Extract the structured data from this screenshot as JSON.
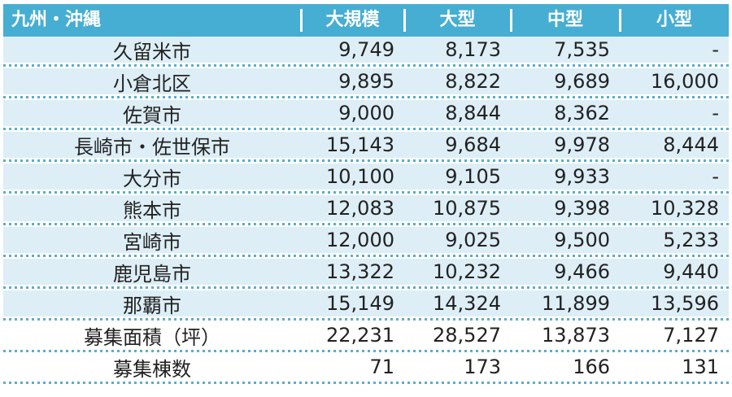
{
  "colors": {
    "header_bg": "#46aed2",
    "row_bg": "#ddeef6",
    "summary_row_bg": "#ffffff",
    "separator_dots": "#5badcd",
    "header_text": "#ffffff",
    "body_text": "#222222"
  },
  "table": {
    "header": {
      "region_label": "九州・沖縄",
      "columns": [
        "大規模",
        "大型",
        "中型",
        "小型"
      ]
    },
    "rows": [
      {
        "label": "久留米市",
        "values": [
          "9,749",
          "8,173",
          "7,535",
          "-"
        ]
      },
      {
        "label": "小倉北区",
        "values": [
          "9,895",
          "8,822",
          "9,689",
          "16,000"
        ]
      },
      {
        "label": "佐賀市",
        "values": [
          "9,000",
          "8,844",
          "8,362",
          "-"
        ]
      },
      {
        "label": "長崎市・佐世保市",
        "values": [
          "15,143",
          "9,684",
          "9,978",
          "8,444"
        ]
      },
      {
        "label": "大分市",
        "values": [
          "10,100",
          "9,105",
          "9,933",
          "-"
        ]
      },
      {
        "label": "熊本市",
        "values": [
          "12,083",
          "10,875",
          "9,398",
          "10,328"
        ]
      },
      {
        "label": "宮崎市",
        "values": [
          "12,000",
          "9,025",
          "9,500",
          "5,233"
        ]
      },
      {
        "label": "鹿児島市",
        "values": [
          "13,322",
          "10,232",
          "9,466",
          "9,440"
        ]
      },
      {
        "label": "那覇市",
        "values": [
          "15,149",
          "14,324",
          "11,899",
          "13,596"
        ]
      },
      {
        "label": "募集面積（坪）",
        "values": [
          "22,231",
          "28,527",
          "13,873",
          "7,127"
        ]
      },
      {
        "label": "募集棟数",
        "values": [
          "71",
          "173",
          "166",
          "131"
        ]
      }
    ]
  },
  "chart_data": {
    "type": "table",
    "title": "九州・沖縄",
    "columns": [
      "大規模",
      "大型",
      "中型",
      "小型"
    ],
    "rows": [
      {
        "label": "久留米市",
        "values": [
          9749,
          8173,
          7535,
          null
        ]
      },
      {
        "label": "小倉北区",
        "values": [
          9895,
          8822,
          9689,
          16000
        ]
      },
      {
        "label": "佐賀市",
        "values": [
          9000,
          8844,
          8362,
          null
        ]
      },
      {
        "label": "長崎市・佐世保市",
        "values": [
          15143,
          9684,
          9978,
          8444
        ]
      },
      {
        "label": "大分市",
        "values": [
          10100,
          9105,
          9933,
          null
        ]
      },
      {
        "label": "熊本市",
        "values": [
          12083,
          10875,
          9398,
          10328
        ]
      },
      {
        "label": "宮崎市",
        "values": [
          12000,
          9025,
          9500,
          5233
        ]
      },
      {
        "label": "鹿児島市",
        "values": [
          13322,
          10232,
          9466,
          9440
        ]
      },
      {
        "label": "那覇市",
        "values": [
          15149,
          14324,
          11899,
          13596
        ]
      },
      {
        "label": "募集面積（坪）",
        "values": [
          22231,
          28527,
          13873,
          7127
        ]
      },
      {
        "label": "募集棟数",
        "values": [
          71,
          173,
          166,
          131
        ]
      }
    ]
  }
}
